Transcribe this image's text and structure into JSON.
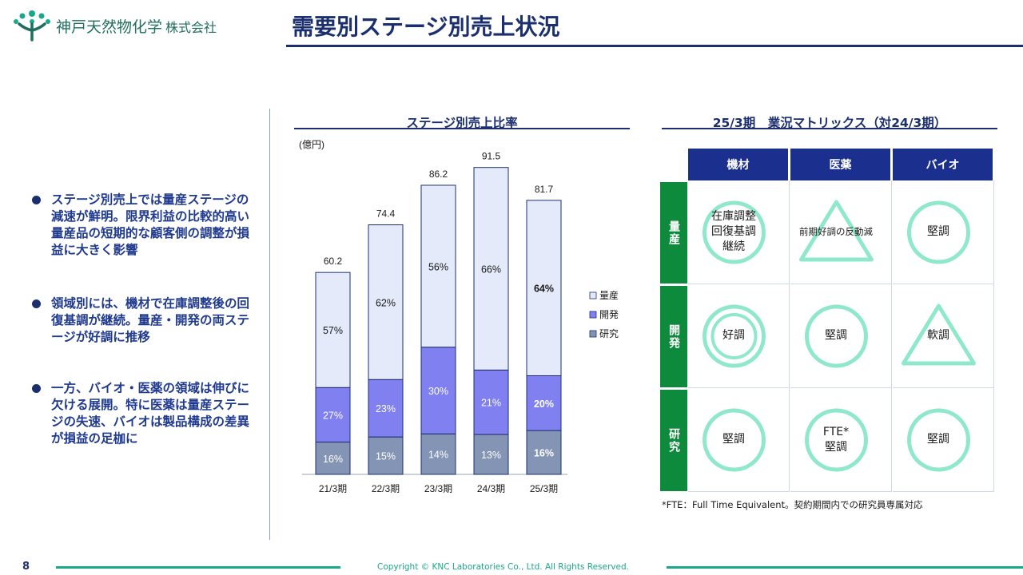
{
  "header": {
    "company_name": "神戸天然物化学",
    "company_suffix": "株式会社",
    "page_title": "需要別ステージ別売上状況"
  },
  "bullets": [
    "ステージ別売上では量産ステージの減速が鮮明。限界利益の比較的高い量産品の短期的な顧客側の調整が損益に大きく影響",
    "領域別には、機材で在庫調整後の回復基調が継続。量産・開発の両ステージが好調に推移",
    "一方、バイオ・医薬の領域は伸びに欠ける展開。特に医薬は量産ステージの失速、バイオは製品構成の差異が損益の足枷に"
  ],
  "chart_section_title": "ステージ別売上比率",
  "chart_data": {
    "type": "bar",
    "stacked": true,
    "unit_label": "(億円)",
    "categories": [
      "21/3期",
      "22/3期",
      "23/3期",
      "24/3期",
      "25/3期"
    ],
    "totals": [
      60.2,
      74.4,
      86.2,
      91.5,
      81.7
    ],
    "series": [
      {
        "name": "研究",
        "color": "#8394b4",
        "percent": [
          16,
          15,
          14,
          13,
          16
        ],
        "labels": [
          "16%",
          "15%",
          "14%",
          "13%",
          "16%"
        ]
      },
      {
        "name": "開発",
        "color": "#8080f0",
        "percent": [
          27,
          23,
          30,
          21,
          20
        ],
        "labels": [
          "27%",
          "23%",
          "30%",
          "21%",
          "20%"
        ]
      },
      {
        "name": "量産",
        "color": "#e4eafa",
        "percent": [
          57,
          62,
          56,
          66,
          64
        ],
        "labels": [
          "57%",
          "62%",
          "56%",
          "66%",
          "64%"
        ]
      }
    ],
    "legend_order": [
      "量産",
      "開発",
      "研究"
    ],
    "legend_position": "right",
    "highlight_category": "25/3期",
    "ylim": [
      0,
      100
    ],
    "grid": false
  },
  "matrix": {
    "title": "25/3期　業況マトリックス（対24/3期）",
    "columns": [
      "機材",
      "医薬",
      "バイオ"
    ],
    "rows": [
      "量産",
      "開発",
      "研究"
    ],
    "cells": [
      [
        {
          "shape": "circle",
          "text": "在庫調整\n回復基調\n継続"
        },
        {
          "shape": "triangle",
          "text": "前期好調の反動減"
        },
        {
          "shape": "circle",
          "text": "堅調"
        }
      ],
      [
        {
          "shape": "double-circle",
          "text": "好調"
        },
        {
          "shape": "circle",
          "text": "堅調"
        },
        {
          "shape": "triangle",
          "text": "軟調"
        }
      ],
      [
        {
          "shape": "circle",
          "text": "堅調"
        },
        {
          "shape": "circle",
          "text": "FTE*\n堅調"
        },
        {
          "shape": "circle",
          "text": "堅調"
        }
      ]
    ],
    "footnote": "*FTE：Full Time Equivalent。契約期間内での研究員専属対応",
    "shape_color": "#8fe8cc"
  },
  "footer": {
    "page_number": "8",
    "copyright": "Copyright © KNC Laboratories Co., Ltd. All Rights Reserved."
  }
}
